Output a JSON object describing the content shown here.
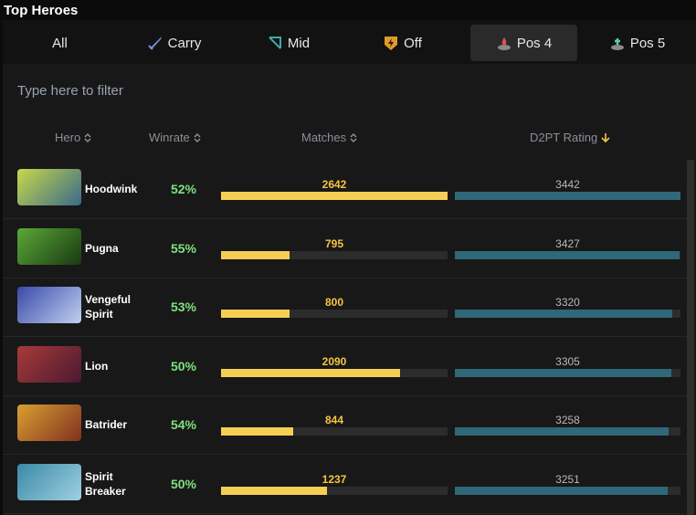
{
  "header": {
    "title": "Top Heroes"
  },
  "tabs": [
    "All",
    "Carry",
    "Mid",
    "Off",
    "Pos 4",
    "Pos 5"
  ],
  "filter": {
    "placeholder": "Type here to filter"
  },
  "table": {
    "columns": [
      "Hero",
      "Winrate",
      "Matches",
      "D2PT Rating"
    ],
    "rows": [
      {
        "hero": "Hoodwink",
        "winrate": "52%",
        "matches": 2642,
        "rating": 3442
      },
      {
        "hero": "Pugna",
        "winrate": "55%",
        "matches": 795,
        "rating": 3427
      },
      {
        "hero": "Vengeful Spirit",
        "winrate": "53%",
        "matches": 800,
        "rating": 3320
      },
      {
        "hero": "Lion",
        "winrate": "50%",
        "matches": 2090,
        "rating": 3305
      },
      {
        "hero": "Batrider",
        "winrate": "54%",
        "matches": 844,
        "rating": 3258
      },
      {
        "hero": "Spirit Breaker",
        "winrate": "50%",
        "matches": 1237,
        "rating": 3251
      }
    ]
  }
}
